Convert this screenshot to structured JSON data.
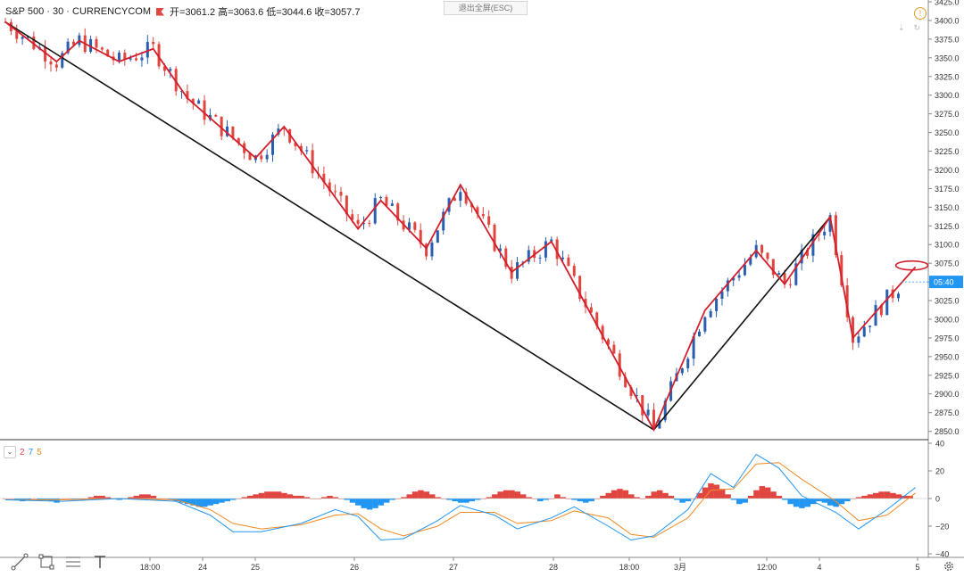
{
  "header": {
    "symbol": "S&P 500 · 30 · CURRENCYCOM",
    "ohlc": "开=3061.2  高=3063.6  低=3044.6  收=3057.7"
  },
  "exit_fullscreen": "退出全屏(ESC)",
  "price_tag": "05:40",
  "indicator_params": [
    "2",
    "7",
    "5"
  ],
  "colors": {
    "up": "#2a5fb0",
    "down": "#e0463f",
    "zigzag": "#d21f2b",
    "trendline": "#111111",
    "macd_fast": "#2196f3",
    "macd_slow": "#f08a24",
    "hist_pos": "#e0463f",
    "hist_neg": "#2196f3",
    "price_tag": "#2196f3"
  },
  "icons": [
    "alert-icon",
    "download-icon",
    "refresh-icon",
    "trendline-tool-icon",
    "rectangle-tool-icon",
    "fib-tool-icon",
    "text-tool-icon",
    "settings-gear-icon"
  ],
  "chart_data": {
    "type": "line",
    "price_axis": {
      "ylim": [
        2840,
        3425
      ],
      "ticks": [
        3425,
        3400,
        3375,
        3350,
        3325,
        3300,
        3275,
        3250,
        3225,
        3200,
        3175,
        3150,
        3125,
        3100,
        3075,
        3050,
        3025,
        3000,
        2975,
        2950,
        2925,
        2900,
        2875,
        2850
      ]
    },
    "time_axis": {
      "labels": [
        "18:00",
        "24",
        "25",
        "26",
        "27",
        "28",
        "18:00",
        "3月",
        "12:00",
        "4",
        "5"
      ]
    },
    "zigzag": [
      [
        0,
        3398
      ],
      [
        9,
        3345
      ],
      [
        13,
        3373
      ],
      [
        20,
        3345
      ],
      [
        26,
        3362
      ],
      [
        32,
        3296
      ],
      [
        44,
        3216
      ],
      [
        49,
        3258
      ],
      [
        62,
        3121
      ],
      [
        66,
        3159
      ],
      [
        74,
        3095
      ],
      [
        80,
        3180
      ],
      [
        89,
        3063
      ],
      [
        96,
        3104
      ],
      [
        114,
        2852
      ],
      [
        123,
        3012
      ],
      [
        132,
        3092
      ],
      [
        137,
        3047
      ],
      [
        145,
        3137
      ],
      [
        149,
        2975
      ],
      [
        160,
        3070
      ]
    ],
    "black_trendline": [
      [
        0,
        3398
      ],
      [
        114,
        2852
      ],
      [
        145,
        3137
      ]
    ],
    "highlight_ellipse_center": [
      160,
      3072
    ],
    "macd_axis": {
      "ylim": [
        -40,
        40
      ],
      "ticks": [
        40,
        20,
        0,
        -20,
        -40
      ]
    },
    "macd_fast": [
      [
        0,
        -1
      ],
      [
        10,
        -2
      ],
      [
        20,
        0
      ],
      [
        30,
        -2
      ],
      [
        36,
        -12
      ],
      [
        40,
        -24
      ],
      [
        45,
        -24
      ],
      [
        52,
        -18
      ],
      [
        58,
        -8
      ],
      [
        62,
        -13
      ],
      [
        66,
        -30
      ],
      [
        70,
        -29
      ],
      [
        76,
        -16
      ],
      [
        80,
        -5
      ],
      [
        86,
        -12
      ],
      [
        90,
        -22
      ],
      [
        96,
        -14
      ],
      [
        100,
        -6
      ],
      [
        106,
        -20
      ],
      [
        110,
        -30
      ],
      [
        114,
        -27
      ],
      [
        120,
        -8
      ],
      [
        124,
        18
      ],
      [
        128,
        8
      ],
      [
        132,
        32
      ],
      [
        136,
        22
      ],
      [
        140,
        2
      ],
      [
        146,
        -10
      ],
      [
        150,
        -22
      ],
      [
        155,
        -8
      ],
      [
        160,
        8
      ]
    ],
    "macd_slow": [
      [
        0,
        -1
      ],
      [
        10,
        -1
      ],
      [
        20,
        0
      ],
      [
        30,
        -1
      ],
      [
        36,
        -8
      ],
      [
        40,
        -18
      ],
      [
        45,
        -22
      ],
      [
        52,
        -19
      ],
      [
        58,
        -12
      ],
      [
        62,
        -11
      ],
      [
        66,
        -22
      ],
      [
        70,
        -27
      ],
      [
        76,
        -20
      ],
      [
        80,
        -10
      ],
      [
        86,
        -10
      ],
      [
        90,
        -18
      ],
      [
        96,
        -16
      ],
      [
        100,
        -9
      ],
      [
        106,
        -14
      ],
      [
        110,
        -26
      ],
      [
        114,
        -28
      ],
      [
        120,
        -14
      ],
      [
        124,
        6
      ],
      [
        128,
        7
      ],
      [
        132,
        25
      ],
      [
        136,
        26
      ],
      [
        140,
        14
      ],
      [
        146,
        -2
      ],
      [
        150,
        -16
      ],
      [
        155,
        -12
      ],
      [
        160,
        4
      ]
    ],
    "macd_hist": [
      0,
      0,
      -1,
      -2,
      -1,
      0,
      -1,
      -1,
      -2,
      -3,
      0,
      0,
      -1,
      -1,
      0,
      1,
      2,
      2,
      1,
      0,
      -1,
      0,
      1,
      2,
      3,
      3,
      2,
      0,
      0,
      -1,
      -2,
      -3,
      -4,
      -5,
      -6,
      -6,
      -5,
      -4,
      -3,
      -2,
      -1,
      0,
      1,
      2,
      3,
      4,
      5,
      5,
      5,
      4,
      3,
      2,
      2,
      1,
      0,
      0,
      1,
      2,
      1,
      0,
      -1,
      -3,
      -5,
      -7,
      -8,
      -7,
      -5,
      -3,
      -1,
      0,
      1,
      3,
      5,
      6,
      5,
      3,
      1,
      0,
      -1,
      -2,
      -3,
      -3,
      -2,
      -1,
      0,
      1,
      3,
      5,
      6,
      6,
      5,
      3,
      1,
      0,
      -2,
      -1,
      0,
      3,
      1,
      0,
      -1,
      -2,
      -3,
      -2,
      0,
      2,
      4,
      6,
      7,
      6,
      3,
      1,
      0,
      2,
      5,
      6,
      4,
      2,
      -1,
      -3,
      -2,
      0,
      4,
      8,
      11,
      10,
      7,
      3,
      -1,
      -4,
      -3,
      2,
      6,
      9,
      8,
      5,
      2,
      -1,
      -4,
      -6,
      -7,
      -6,
      -4,
      -2,
      -3,
      -5,
      -6,
      -4,
      -2,
      0,
      1,
      2,
      3,
      4,
      5,
      5,
      4,
      3,
      2,
      2
    ]
  }
}
